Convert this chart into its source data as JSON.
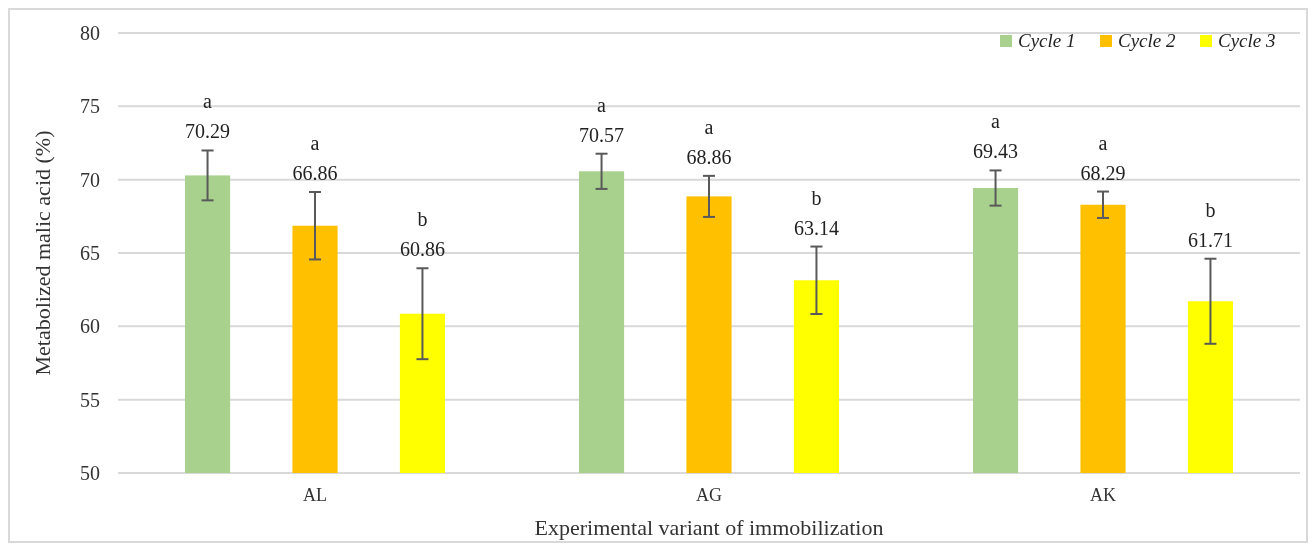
{
  "chart_data": {
    "type": "bar",
    "xlabel": "Experimental variant of immobilization",
    "ylabel": "Metabolized malic acid (%)",
    "categories": [
      "AL",
      "AG",
      "AK"
    ],
    "series": [
      {
        "name": "Cycle 1",
        "color": "#a9d18e",
        "values": [
          70.29,
          70.57,
          69.43
        ],
        "errors": [
          1.7,
          1.2,
          1.2
        ]
      },
      {
        "name": "Cycle 2",
        "color": "#ffc000",
        "values": [
          66.86,
          68.86,
          68.29
        ],
        "errors": [
          2.3,
          1.4,
          0.9
        ]
      },
      {
        "name": "Cycle 3",
        "color": "#ffff00",
        "values": [
          60.86,
          63.14,
          61.71
        ],
        "errors": [
          3.1,
          2.3,
          2.9
        ]
      }
    ],
    "ylim": [
      50,
      80
    ],
    "yticks": [
      50,
      55,
      60,
      65,
      70,
      75,
      80
    ],
    "grid": "y",
    "legend": "top right",
    "data_labels": true,
    "annotations": [
      "a",
      "a",
      "b",
      "a",
      "a",
      "b",
      "a",
      "a",
      "b"
    ]
  }
}
